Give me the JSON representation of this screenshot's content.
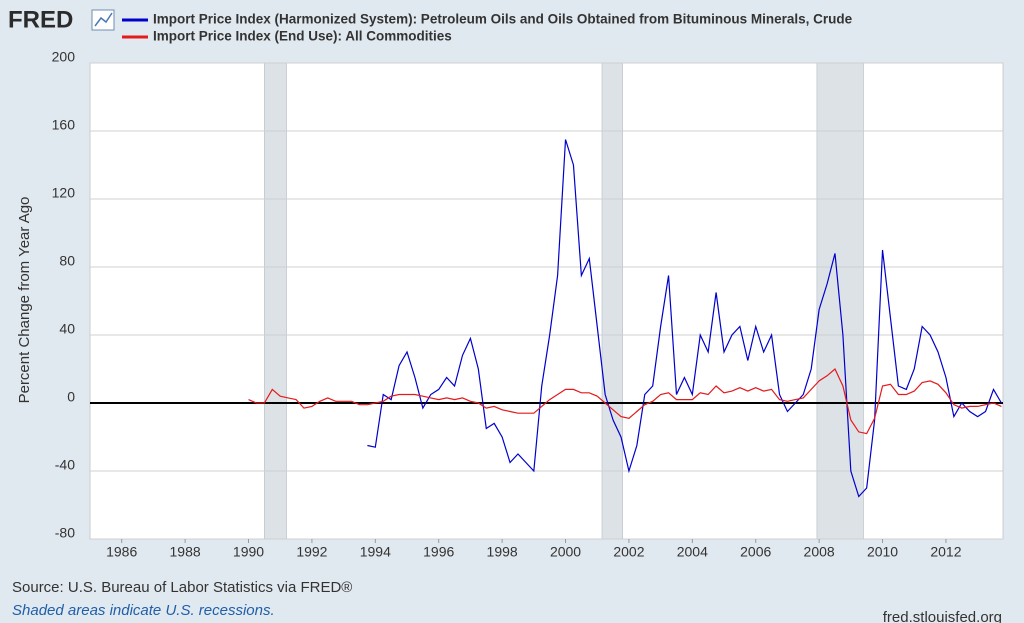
{
  "logo": "FRED",
  "chart_data": {
    "type": "line",
    "y_label": "Percent Change from Year Ago",
    "source": "Source: U.S. Bureau of Labor Statistics via FRED®",
    "note": "Shaded areas indicate U.S. recessions.",
    "site": "fred.stlouisfed.org",
    "xlim": [
      1985,
      2013.8
    ],
    "xticks": [
      1986,
      1988,
      1990,
      1992,
      1994,
      1996,
      1998,
      2000,
      2002,
      2004,
      2006,
      2008,
      2010,
      2012
    ],
    "ylim": [
      -80,
      200
    ],
    "yticks": [
      -80,
      -40,
      0,
      40,
      80,
      120,
      160,
      200
    ],
    "zero_line": 0,
    "grid": true,
    "recessions": [
      [
        1990.5,
        1991.2
      ],
      [
        2001.15,
        2001.8
      ],
      [
        2007.93,
        2009.4
      ]
    ],
    "x": [
      1990,
      1990.25,
      1990.5,
      1990.75,
      1991,
      1991.25,
      1991.5,
      1991.75,
      1992,
      1992.25,
      1992.5,
      1992.75,
      1993,
      1993.25,
      1993.5,
      1993.75,
      1994,
      1994.25,
      1994.5,
      1994.75,
      1995,
      1995.25,
      1995.5,
      1995.75,
      1996,
      1996.25,
      1996.5,
      1996.75,
      1997,
      1997.25,
      1997.5,
      1997.75,
      1998,
      1998.25,
      1998.5,
      1998.75,
      1999,
      1999.25,
      1999.5,
      1999.75,
      2000,
      2000.25,
      2000.5,
      2000.75,
      2001,
      2001.25,
      2001.5,
      2001.75,
      2002,
      2002.25,
      2002.5,
      2002.75,
      2003,
      2003.25,
      2003.5,
      2003.75,
      2004,
      2004.25,
      2004.5,
      2004.75,
      2005,
      2005.25,
      2005.5,
      2005.75,
      2006,
      2006.25,
      2006.5,
      2006.75,
      2007,
      2007.25,
      2007.5,
      2007.75,
      2008,
      2008.25,
      2008.5,
      2008.75,
      2009,
      2009.25,
      2009.5,
      2009.75,
      2010,
      2010.25,
      2010.5,
      2010.75,
      2011,
      2011.25,
      2011.5,
      2011.75,
      2012,
      2012.25,
      2012.5,
      2012.75,
      2013,
      2013.25,
      2013.5,
      2013.75
    ],
    "series": [
      {
        "name": "Import Price Index (Harmonized System): Petroleum Oils and Oils Obtained from Bituminous Minerals, Crude",
        "color": "#0000cc",
        "values": [
          null,
          null,
          null,
          null,
          null,
          null,
          null,
          null,
          null,
          null,
          null,
          null,
          null,
          null,
          null,
          -25,
          -26,
          5,
          2,
          22,
          30,
          15,
          -3,
          5,
          8,
          15,
          10,
          28,
          38,
          20,
          -15,
          -12,
          -20,
          -35,
          -30,
          -35,
          -40,
          10,
          40,
          75,
          155,
          140,
          75,
          85,
          45,
          5,
          -10,
          -20,
          -40,
          -25,
          5,
          10,
          45,
          75,
          5,
          15,
          5,
          40,
          30,
          65,
          30,
          40,
          45,
          25,
          45,
          30,
          40,
          5,
          -5,
          0,
          5,
          20,
          55,
          70,
          88,
          40,
          -40,
          -55,
          -50,
          -10,
          90,
          50,
          10,
          8,
          20,
          45,
          40,
          30,
          15,
          -8,
          0,
          -5,
          -8,
          -5,
          8,
          0
        ]
      },
      {
        "name": "Import Price Index (End Use): All Commodities",
        "color": "#e41a1c",
        "values": [
          2,
          0,
          0,
          8,
          4,
          3,
          2,
          -3,
          -2,
          1,
          3,
          1,
          1,
          1,
          -1,
          -1,
          0,
          1,
          4,
          5,
          5,
          5,
          4,
          3,
          2,
          3,
          2,
          3,
          1,
          0,
          -3,
          -2,
          -4,
          -5,
          -6,
          -6,
          -6,
          -2,
          2,
          5,
          8,
          8,
          6,
          6,
          4,
          0,
          -4,
          -8,
          -9,
          -5,
          -1,
          1,
          5,
          6,
          2,
          2,
          2,
          6,
          5,
          10,
          6,
          7,
          9,
          7,
          9,
          7,
          8,
          2,
          1,
          2,
          3,
          8,
          13,
          16,
          20,
          10,
          -10,
          -17,
          -18,
          -9,
          10,
          11,
          5,
          5,
          7,
          12,
          13,
          11,
          6,
          -1,
          -3,
          -2,
          -2,
          -1,
          0,
          -2
        ]
      }
    ]
  }
}
